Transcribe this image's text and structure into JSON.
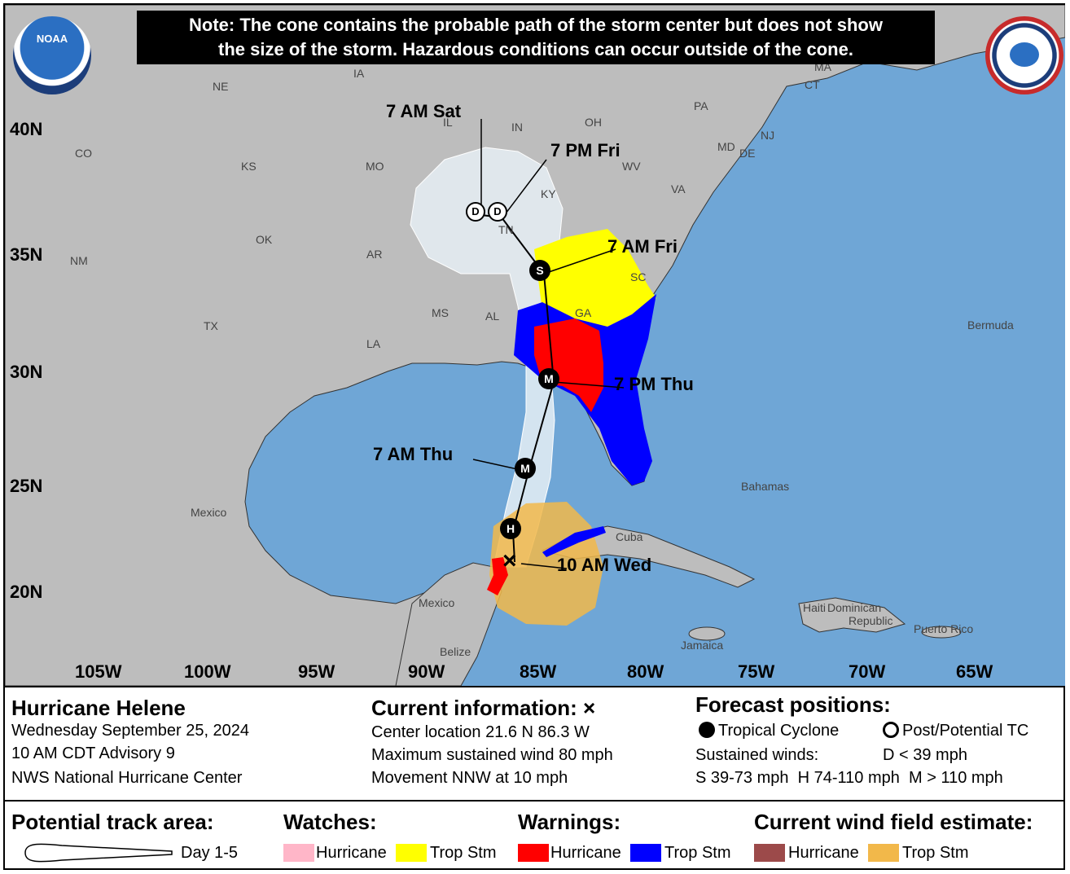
{
  "note": {
    "line1": "Note: The cone contains the probable path of the storm center but does not show",
    "line2": "the size of the storm. Hazardous conditions can occur outside of the cone."
  },
  "logos": {
    "noaa": "NOAA",
    "nws": "National Weather Service"
  },
  "lat_labels": [
    "40N",
    "35N",
    "30N",
    "25N",
    "20N"
  ],
  "lon_labels": [
    "105W",
    "100W",
    "95W",
    "90W",
    "85W",
    "80W",
    "75W",
    "70W",
    "65W"
  ],
  "region_labels": {
    "ne": "NE",
    "ia": "IA",
    "il": "IL",
    "in": "IN",
    "oh": "OH",
    "pa": "PA",
    "ma": "MA",
    "ct": "CT",
    "md": "MD",
    "de": "DE",
    "nj": "NJ",
    "co": "CO",
    "ks": "KS",
    "mo": "MO",
    "ky": "KY",
    "wv": "WV",
    "va": "VA",
    "ok": "OK",
    "tn": "TN",
    "ar": "AR",
    "sc": "SC",
    "nm": "NM",
    "ms": "MS",
    "al": "AL",
    "ga": "GA",
    "tx": "TX",
    "la": "LA",
    "bermuda": "Bermuda",
    "bahamas": "Bahamas",
    "cuba": "Cuba",
    "mexico_n": "Mexico",
    "mexico_s": "Mexico",
    "belize": "Belize",
    "jamaica": "Jamaica",
    "haiti": "Haiti",
    "dominican": "Dominican",
    "republic": "Republic",
    "puerto_rico": "Puerto Rico"
  },
  "track_labels": {
    "sat7am": "7 AM Sat",
    "fri7pm": "7 PM Fri",
    "fri7am": "7 AM Fri",
    "thu7pm": "7 PM Thu",
    "thu7am": "7 AM Thu",
    "wed10am": "10 AM Wed"
  },
  "track_points": [
    {
      "label": "10 AM Wed",
      "type": "current"
    },
    {
      "label": "",
      "type": "H"
    },
    {
      "label": "7 AM Thu",
      "type": "M"
    },
    {
      "label": "7 PM Thu",
      "type": "M"
    },
    {
      "label": "7 AM Fri",
      "type": "S"
    },
    {
      "label": "7 PM Fri",
      "type": "D"
    },
    {
      "label": "7 AM Sat",
      "type": "D"
    }
  ],
  "storm": {
    "name": "Hurricane Helene",
    "date": "Wednesday September 25, 2024",
    "advisory": "10 AM CDT Advisory 9",
    "center": "NWS National Hurricane Center"
  },
  "current_info": {
    "title": "Current information:",
    "mark": "×",
    "location": "Center location 21.6 N 86.3 W",
    "wind": "Maximum sustained wind 80 mph",
    "movement": "Movement NNW at 10 mph"
  },
  "forecast_positions": {
    "title": "Forecast positions:",
    "tc": "Tropical Cyclone",
    "post": "Post/Potential TC",
    "sustained": "Sustained winds:",
    "d": "D < 39 mph",
    "scale": "S 39-73 mph  H 74-110 mph  M > 110 mph"
  },
  "legend": {
    "track_area_title": "Potential track area:",
    "day_label": "Day 1-5",
    "watches_title": "Watches:",
    "warnings_title": "Warnings:",
    "wind_title": "Current wind field estimate:",
    "hurricane": "Hurricane",
    "trop_stm": "Trop Stm"
  },
  "colors": {
    "water": "#6fa6d6",
    "land": "#bdbdbd",
    "cone": "#e6eef5",
    "hurricane_watch": "#ffb6c8",
    "trop_storm_watch": "#ffff00",
    "hurricane_warning": "#ff0000",
    "trop_storm_warning": "#0000ff",
    "hurricane_wind": "#9c4a4a",
    "trop_storm_wind": "#f2b84a"
  }
}
